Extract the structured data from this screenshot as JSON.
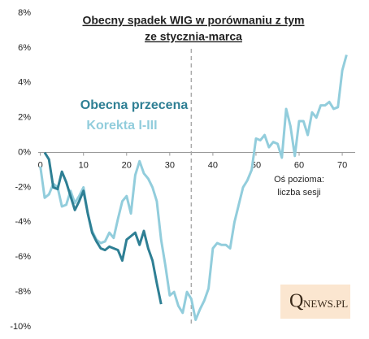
{
  "chart_data": {
    "type": "line",
    "title": [
      "Obecny spadek WIG w porównaniu z tym",
      "ze stycznia-marca"
    ],
    "annotation": [
      "Oś pozioma:",
      "liczba sesji"
    ],
    "watermark": [
      "Q",
      "NEWS.PL"
    ],
    "vline": 35,
    "xlim": [
      -0.5,
      73
    ],
    "xticks": [
      0,
      10,
      20,
      30,
      40,
      50,
      60,
      70
    ],
    "ylim": [
      -10,
      8
    ],
    "yticks": [
      {
        "value": -10,
        "label": "-10%"
      },
      {
        "value": -8,
        "label": "-8%"
      },
      {
        "value": -6,
        "label": "-6%"
      },
      {
        "value": -4,
        "label": "-4%"
      },
      {
        "value": -2,
        "label": "-2%"
      },
      {
        "value": 0,
        "label": "0%"
      },
      {
        "value": 2,
        "label": "2%"
      },
      {
        "value": 4,
        "label": "4%"
      },
      {
        "value": 6,
        "label": "6%"
      },
      {
        "value": 8,
        "label": "8%"
      }
    ],
    "grid": false,
    "series": [
      {
        "name": "Korekta I-III",
        "color": "#92cddc",
        "x": [
          0,
          1,
          2,
          3,
          4,
          5,
          6,
          7,
          8,
          9,
          10,
          11,
          12,
          13,
          14,
          15,
          16,
          17,
          18,
          19,
          20,
          21,
          22,
          23,
          24,
          25,
          26,
          27,
          28,
          29,
          30,
          31,
          32,
          33,
          34,
          35,
          36,
          37,
          38,
          39,
          40,
          41,
          42,
          43,
          44,
          45,
          46,
          47,
          48,
          49,
          50,
          51,
          52,
          53,
          54,
          55,
          56,
          57,
          58,
          59,
          60,
          61,
          62,
          63,
          64,
          65,
          66,
          67,
          68,
          69,
          70,
          71
        ],
        "values": [
          -0.8,
          -2.6,
          -2.4,
          -1.8,
          -2.0,
          -3.1,
          -3.0,
          -2.2,
          -2.9,
          -2.5,
          -2.0,
          -3.5,
          -4.5,
          -5.0,
          -5.2,
          -5.1,
          -4.6,
          -4.9,
          -3.8,
          -2.8,
          -2.5,
          -3.5,
          -1.3,
          -0.5,
          -1.2,
          -1.5,
          -2.0,
          -2.8,
          -5.0,
          -6.5,
          -8.2,
          -8.0,
          -8.8,
          -9.2,
          -8.0,
          -8.4,
          -9.6,
          -9.0,
          -8.5,
          -7.8,
          -5.5,
          -5.2,
          -5.3,
          -5.3,
          -5.5,
          -4.0,
          -3.0,
          -2.0,
          -1.6,
          -1.0,
          0.8,
          0.7,
          1.0,
          0.3,
          0.6,
          0.5,
          -0.3,
          2.5,
          1.5,
          -0.2,
          1.8,
          1.8,
          1.0,
          2.3,
          2.0,
          2.7,
          2.7,
          2.9,
          2.5,
          2.6,
          4.7,
          5.6
        ]
      },
      {
        "name": "Obecna przecena",
        "color": "#2e7f94",
        "x": [
          1,
          2,
          3,
          4,
          5,
          6,
          7,
          8,
          9,
          10,
          11,
          12,
          13,
          14,
          15,
          16,
          17,
          18,
          19,
          20,
          21,
          22,
          23,
          24,
          25,
          26,
          27,
          28
        ],
        "values": [
          0,
          -0.4,
          -2.0,
          -2.1,
          -1.1,
          -1.7,
          -2.5,
          -3.3,
          -2.8,
          -2.2,
          -3.5,
          -4.6,
          -5.1,
          -5.5,
          -5.6,
          -5.4,
          -5.5,
          -5.6,
          -6.2,
          -5.0,
          -4.8,
          -4.6,
          -5.3,
          -4.5,
          -5.5,
          -6.2,
          -7.5,
          -8.7
        ]
      }
    ]
  }
}
